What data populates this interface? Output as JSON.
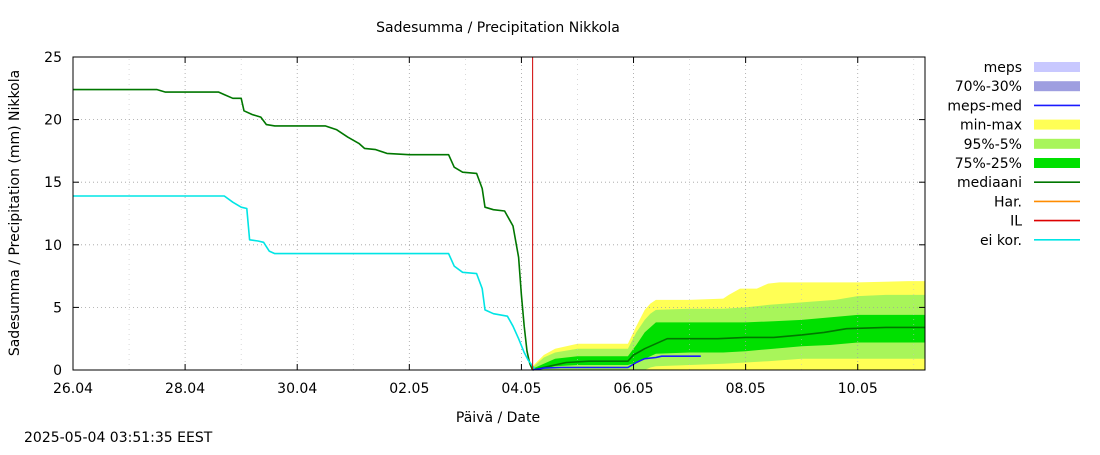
{
  "chart_data": {
    "type": "area",
    "title": "Sadesumma / Precipitation  Nikkola",
    "xlabel": "Päivä / Date",
    "ylabel": "Sadesumma / Precipitation (mm)  Nikkola",
    "xlim": [
      0,
      15.2
    ],
    "ylim": [
      0,
      25
    ],
    "grid": true,
    "x_ticks": [
      {
        "x": 0,
        "label": "26.04"
      },
      {
        "x": 2,
        "label": "28.04"
      },
      {
        "x": 4,
        "label": "30.04"
      },
      {
        "x": 6,
        "label": "02.05"
      },
      {
        "x": 8,
        "label": "04.05"
      },
      {
        "x": 10,
        "label": "06.05"
      },
      {
        "x": 12,
        "label": "08.05"
      },
      {
        "x": 14,
        "label": "10.05"
      }
    ],
    "y_ticks": [
      0,
      5,
      10,
      15,
      20,
      25
    ],
    "y_tick_labels": [
      "0",
      "5",
      "10",
      "15",
      "20",
      "25"
    ],
    "vline": {
      "x": 8.2,
      "color": "#d00000"
    },
    "legend": [
      {
        "label": "meps",
        "color": "#c8c8ff",
        "kind": "band"
      },
      {
        "label": "70%-30%",
        "color": "#9e9ee0",
        "kind": "band"
      },
      {
        "label": "meps-med",
        "color": "#1a1aff",
        "kind": "line"
      },
      {
        "label": "min-max",
        "color": "#ffff55",
        "kind": "band"
      },
      {
        "label": "95%-5%",
        "color": "#a8f55a",
        "kind": "band"
      },
      {
        "label": "75%-25%",
        "color": "#00e000",
        "kind": "band"
      },
      {
        "label": "mediaani",
        "color": "#007700",
        "kind": "line"
      },
      {
        "label": "Har.",
        "color": "#ff8c00",
        "kind": "line"
      },
      {
        "label": "IL",
        "color": "#dd0000",
        "kind": "line"
      },
      {
        "label": "ei kor.",
        "color": "#00e5e5",
        "kind": "line"
      }
    ],
    "series": [
      {
        "name": "mediaani",
        "color": "#007700",
        "points": [
          [
            0,
            22.4
          ],
          [
            1.5,
            22.4
          ],
          [
            1.65,
            22.2
          ],
          [
            2.6,
            22.2
          ],
          [
            2.7,
            22.0
          ],
          [
            2.85,
            21.7
          ],
          [
            3.0,
            21.7
          ],
          [
            3.05,
            20.7
          ],
          [
            3.2,
            20.4
          ],
          [
            3.35,
            20.2
          ],
          [
            3.45,
            19.6
          ],
          [
            3.6,
            19.5
          ],
          [
            4.5,
            19.5
          ],
          [
            4.7,
            19.2
          ],
          [
            4.9,
            18.6
          ],
          [
            5.1,
            18.1
          ],
          [
            5.2,
            17.7
          ],
          [
            5.4,
            17.6
          ],
          [
            5.6,
            17.3
          ],
          [
            6.0,
            17.2
          ],
          [
            6.7,
            17.2
          ],
          [
            6.8,
            16.2
          ],
          [
            6.95,
            15.8
          ],
          [
            7.2,
            15.7
          ],
          [
            7.3,
            14.5
          ],
          [
            7.35,
            13.0
          ],
          [
            7.5,
            12.8
          ],
          [
            7.7,
            12.7
          ],
          [
            7.85,
            11.5
          ],
          [
            7.95,
            9.0
          ],
          [
            8.0,
            6.0
          ],
          [
            8.05,
            3.5
          ],
          [
            8.1,
            1.5
          ],
          [
            8.15,
            0.5
          ],
          [
            8.2,
            0
          ]
        ]
      },
      {
        "name": "ei kor.",
        "color": "#00e5e5",
        "points": [
          [
            0,
            13.9
          ],
          [
            2.7,
            13.9
          ],
          [
            2.85,
            13.4
          ],
          [
            3.0,
            13.0
          ],
          [
            3.1,
            12.9
          ],
          [
            3.15,
            10.4
          ],
          [
            3.3,
            10.3
          ],
          [
            3.4,
            10.2
          ],
          [
            3.5,
            9.5
          ],
          [
            3.6,
            9.3
          ],
          [
            6.7,
            9.3
          ],
          [
            6.8,
            8.3
          ],
          [
            6.95,
            7.8
          ],
          [
            7.2,
            7.7
          ],
          [
            7.3,
            6.5
          ],
          [
            7.35,
            4.8
          ],
          [
            7.5,
            4.5
          ],
          [
            7.75,
            4.3
          ],
          [
            7.85,
            3.5
          ],
          [
            7.95,
            2.5
          ],
          [
            8.05,
            1.4
          ],
          [
            8.12,
            0.8
          ],
          [
            8.2,
            0.3
          ],
          [
            8.25,
            0
          ]
        ]
      },
      {
        "name": "mediaani",
        "color": "#007700",
        "points": [
          [
            8.2,
            0
          ],
          [
            8.5,
            0.3
          ],
          [
            8.8,
            0.6
          ],
          [
            9.2,
            0.7
          ],
          [
            9.9,
            0.7
          ],
          [
            10.0,
            1.2
          ],
          [
            10.2,
            1.7
          ],
          [
            10.4,
            2.1
          ],
          [
            10.6,
            2.5
          ],
          [
            11.5,
            2.5
          ],
          [
            12.0,
            2.6
          ],
          [
            12.5,
            2.6
          ],
          [
            13.0,
            2.8
          ],
          [
            13.4,
            3.0
          ],
          [
            13.8,
            3.3
          ],
          [
            14.5,
            3.4
          ],
          [
            15.2,
            3.4
          ]
        ]
      },
      {
        "name": "meps-med",
        "color": "#1a1aff",
        "points": [
          [
            8.2,
            0
          ],
          [
            8.4,
            0.15
          ],
          [
            8.7,
            0.2
          ],
          [
            9.9,
            0.2
          ],
          [
            10.05,
            0.6
          ],
          [
            10.2,
            0.9
          ],
          [
            10.4,
            1.0
          ],
          [
            10.5,
            1.1
          ],
          [
            11.2,
            1.1
          ]
        ]
      }
    ],
    "bands": [
      {
        "name": "min-max",
        "color": "#ffff55",
        "x": [
          8.2,
          8.4,
          8.6,
          9.0,
          9.9,
          10.05,
          10.2,
          10.3,
          10.4,
          11.0,
          11.6,
          11.7,
          11.9,
          12.2,
          12.4,
          12.6,
          13.0,
          14.0,
          14.9,
          15.2
        ],
        "upper": [
          0.3,
          1.2,
          1.7,
          2.1,
          2.1,
          3.5,
          4.8,
          5.3,
          5.6,
          5.6,
          5.7,
          6.0,
          6.5,
          6.5,
          6.9,
          7.0,
          7.0,
          7.0,
          7.1,
          7.1
        ],
        "lower": [
          0,
          0,
          0,
          0,
          0,
          0,
          0,
          0,
          0,
          0,
          0,
          0,
          0,
          0,
          0,
          0,
          0,
          0,
          0,
          0
        ]
      },
      {
        "name": "95%-5%",
        "color": "#a8f55a",
        "x": [
          8.2,
          8.4,
          8.6,
          9.0,
          9.9,
          10.05,
          10.2,
          10.3,
          10.4,
          11.0,
          11.6,
          12.0,
          12.4,
          13.0,
          13.6,
          14.0,
          14.5,
          15.2
        ],
        "upper": [
          0.2,
          1.0,
          1.4,
          1.7,
          1.7,
          3.0,
          4.0,
          4.5,
          4.8,
          4.9,
          4.9,
          5.0,
          5.2,
          5.4,
          5.6,
          5.9,
          6.0,
          6.0
        ],
        "lower": [
          0,
          0,
          0,
          0,
          0,
          0,
          0,
          0.2,
          0.3,
          0.4,
          0.5,
          0.6,
          0.7,
          0.9,
          0.9,
          0.9,
          0.9,
          0.9
        ]
      },
      {
        "name": "75%-25%",
        "color": "#00e000",
        "x": [
          8.2,
          8.4,
          8.6,
          9.0,
          9.9,
          10.05,
          10.2,
          10.4,
          11.0,
          11.6,
          12.0,
          12.5,
          13.0,
          13.5,
          14.0,
          14.5,
          15.2
        ],
        "upper": [
          0.1,
          0.5,
          0.9,
          1.1,
          1.1,
          2.0,
          3.0,
          3.8,
          3.8,
          3.8,
          3.8,
          3.9,
          4.0,
          4.2,
          4.4,
          4.4,
          4.4
        ],
        "lower": [
          0,
          0.1,
          0.3,
          0.4,
          0.4,
          0.6,
          0.9,
          1.3,
          1.4,
          1.4,
          1.5,
          1.7,
          1.9,
          2.0,
          2.2,
          2.2,
          2.2
        ]
      }
    ]
  },
  "timestamp": "2025-05-04 03:51:35 EEST"
}
